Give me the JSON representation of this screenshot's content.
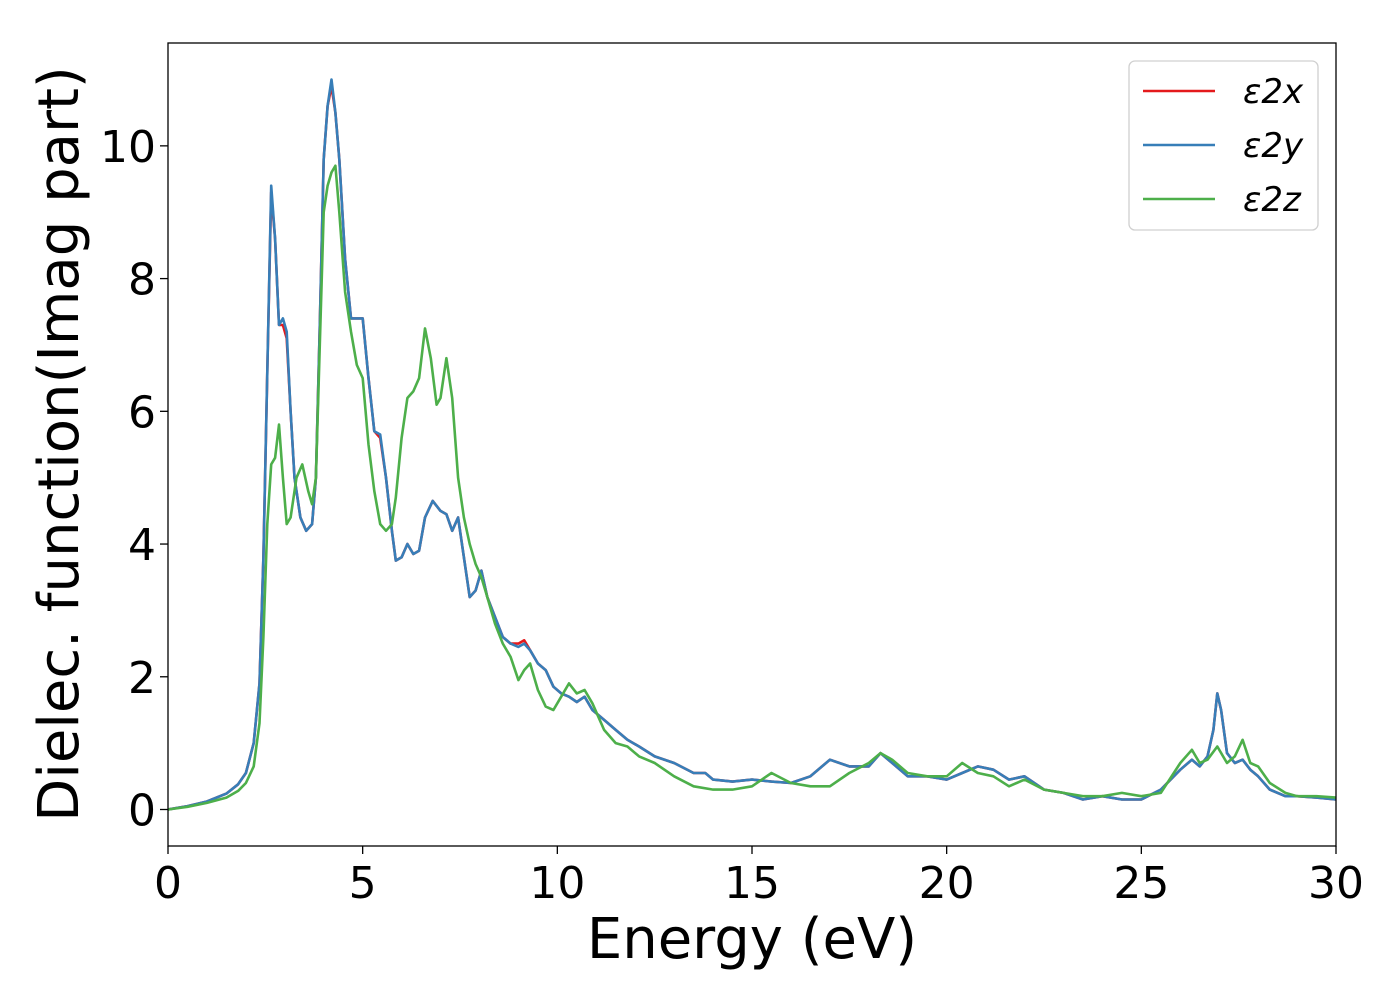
{
  "chart_data": {
    "type": "line",
    "xlabel": "Energy (eV)",
    "ylabel": "Dielec. function(Imag part)",
    "xlim": [
      0,
      30
    ],
    "ylim": [
      -0.55,
      11.55
    ],
    "xticks": [
      0,
      5,
      10,
      15,
      20,
      25,
      30
    ],
    "yticks": [
      0,
      2,
      4,
      6,
      8,
      10
    ],
    "grid": false,
    "legend_position": "top-right",
    "series": [
      {
        "name": "ε2x",
        "color": "#e41a1c",
        "x": [
          0,
          0.5,
          1.0,
          1.5,
          1.8,
          2.0,
          2.2,
          2.35,
          2.45,
          2.55,
          2.65,
          2.75,
          2.85,
          2.95,
          3.05,
          3.15,
          3.25,
          3.4,
          3.55,
          3.7,
          3.8,
          3.9,
          4.0,
          4.1,
          4.2,
          4.3,
          4.4,
          4.55,
          4.7,
          4.85,
          5.0,
          5.15,
          5.3,
          5.45,
          5.6,
          5.75,
          5.85,
          6.0,
          6.15,
          6.3,
          6.45,
          6.6,
          6.8,
          7.0,
          7.15,
          7.3,
          7.45,
          7.6,
          7.75,
          7.9,
          8.05,
          8.2,
          8.4,
          8.6,
          8.8,
          9.0,
          9.15,
          9.3,
          9.5,
          9.7,
          9.9,
          10.1,
          10.3,
          10.5,
          10.7,
          10.9,
          11.2,
          11.5,
          11.8,
          12.1,
          12.5,
          13.0,
          13.5,
          13.8,
          14.0,
          14.5,
          15.0,
          15.5,
          16.0,
          16.5,
          17.0,
          17.5,
          18.0,
          18.3,
          18.6,
          19.0,
          19.5,
          20.0,
          20.4,
          20.8,
          21.2,
          21.6,
          22.0,
          22.5,
          23.0,
          23.5,
          24.0,
          24.5,
          25.0,
          25.5,
          26.0,
          26.3,
          26.5,
          26.7,
          26.85,
          26.95,
          27.05,
          27.2,
          27.4,
          27.6,
          27.8,
          28.0,
          28.3,
          28.7,
          29.0,
          29.5,
          30.0
        ],
        "y": [
          0.0,
          0.05,
          0.12,
          0.24,
          0.38,
          0.55,
          1.0,
          1.9,
          3.8,
          6.6,
          9.3,
          8.6,
          7.3,
          7.3,
          7.1,
          6.0,
          5.0,
          4.4,
          4.2,
          4.3,
          5.0,
          7.3,
          9.8,
          10.6,
          10.9,
          10.5,
          9.8,
          8.3,
          7.4,
          7.4,
          7.4,
          6.5,
          5.7,
          5.6,
          5.0,
          4.2,
          3.75,
          3.8,
          4.0,
          3.85,
          3.9,
          4.4,
          4.65,
          4.5,
          4.45,
          4.2,
          4.4,
          3.8,
          3.2,
          3.3,
          3.6,
          3.2,
          2.9,
          2.6,
          2.5,
          2.5,
          2.55,
          2.4,
          2.2,
          2.1,
          1.85,
          1.75,
          1.7,
          1.62,
          1.7,
          1.5,
          1.35,
          1.2,
          1.05,
          0.95,
          0.8,
          0.7,
          0.55,
          0.55,
          0.45,
          0.42,
          0.45,
          0.42,
          0.4,
          0.5,
          0.75,
          0.65,
          0.65,
          0.85,
          0.7,
          0.5,
          0.5,
          0.45,
          0.55,
          0.65,
          0.6,
          0.45,
          0.5,
          0.3,
          0.25,
          0.15,
          0.2,
          0.15,
          0.15,
          0.3,
          0.6,
          0.75,
          0.65,
          0.8,
          1.2,
          1.75,
          1.5,
          0.85,
          0.7,
          0.75,
          0.6,
          0.5,
          0.3,
          0.2,
          0.2,
          0.18,
          0.15
        ]
      },
      {
        "name": "ε2y",
        "color": "#377eb8",
        "x": [
          0,
          0.5,
          1.0,
          1.5,
          1.8,
          2.0,
          2.2,
          2.35,
          2.45,
          2.55,
          2.65,
          2.75,
          2.85,
          2.95,
          3.05,
          3.15,
          3.25,
          3.4,
          3.55,
          3.7,
          3.8,
          3.9,
          4.0,
          4.1,
          4.2,
          4.3,
          4.4,
          4.55,
          4.7,
          4.85,
          5.0,
          5.15,
          5.3,
          5.45,
          5.6,
          5.75,
          5.85,
          6.0,
          6.15,
          6.3,
          6.45,
          6.6,
          6.8,
          7.0,
          7.15,
          7.3,
          7.45,
          7.6,
          7.75,
          7.9,
          8.05,
          8.2,
          8.4,
          8.6,
          8.8,
          9.0,
          9.15,
          9.3,
          9.5,
          9.7,
          9.9,
          10.1,
          10.3,
          10.5,
          10.7,
          10.9,
          11.2,
          11.5,
          11.8,
          12.1,
          12.5,
          13.0,
          13.5,
          13.8,
          14.0,
          14.5,
          15.0,
          15.5,
          16.0,
          16.5,
          17.0,
          17.5,
          18.0,
          18.3,
          18.6,
          19.0,
          19.5,
          20.0,
          20.4,
          20.8,
          21.2,
          21.6,
          22.0,
          22.5,
          23.0,
          23.5,
          24.0,
          24.5,
          25.0,
          25.5,
          26.0,
          26.3,
          26.5,
          26.7,
          26.85,
          26.95,
          27.05,
          27.2,
          27.4,
          27.6,
          27.8,
          28.0,
          28.3,
          28.7,
          29.0,
          29.5,
          30.0
        ],
        "y": [
          0.0,
          0.05,
          0.12,
          0.24,
          0.38,
          0.55,
          1.0,
          1.9,
          3.8,
          6.6,
          9.4,
          8.6,
          7.3,
          7.4,
          7.2,
          6.0,
          5.0,
          4.4,
          4.2,
          4.3,
          5.0,
          7.3,
          9.8,
          10.6,
          11.0,
          10.5,
          9.8,
          8.3,
          7.4,
          7.4,
          7.4,
          6.5,
          5.7,
          5.65,
          5.0,
          4.2,
          3.75,
          3.8,
          4.0,
          3.85,
          3.9,
          4.4,
          4.65,
          4.5,
          4.45,
          4.2,
          4.4,
          3.8,
          3.2,
          3.3,
          3.6,
          3.2,
          2.9,
          2.6,
          2.5,
          2.45,
          2.5,
          2.4,
          2.2,
          2.1,
          1.85,
          1.75,
          1.7,
          1.62,
          1.7,
          1.5,
          1.35,
          1.2,
          1.05,
          0.95,
          0.8,
          0.7,
          0.55,
          0.55,
          0.45,
          0.42,
          0.45,
          0.42,
          0.4,
          0.5,
          0.75,
          0.65,
          0.65,
          0.85,
          0.7,
          0.5,
          0.5,
          0.45,
          0.55,
          0.65,
          0.6,
          0.45,
          0.5,
          0.3,
          0.25,
          0.15,
          0.2,
          0.15,
          0.15,
          0.3,
          0.6,
          0.75,
          0.65,
          0.8,
          1.2,
          1.75,
          1.5,
          0.85,
          0.7,
          0.75,
          0.6,
          0.5,
          0.3,
          0.2,
          0.2,
          0.18,
          0.15
        ]
      },
      {
        "name": "ε2z",
        "color": "#4daf4a",
        "x": [
          0,
          0.5,
          1.0,
          1.5,
          1.8,
          2.0,
          2.2,
          2.35,
          2.45,
          2.55,
          2.65,
          2.75,
          2.85,
          2.95,
          3.05,
          3.15,
          3.3,
          3.45,
          3.6,
          3.7,
          3.8,
          3.9,
          4.0,
          4.1,
          4.2,
          4.3,
          4.4,
          4.55,
          4.7,
          4.85,
          5.0,
          5.15,
          5.3,
          5.45,
          5.6,
          5.75,
          5.85,
          6.0,
          6.15,
          6.3,
          6.45,
          6.6,
          6.75,
          6.9,
          7.0,
          7.15,
          7.3,
          7.45,
          7.6,
          7.75,
          7.9,
          8.05,
          8.2,
          8.4,
          8.6,
          8.8,
          9.0,
          9.15,
          9.3,
          9.5,
          9.7,
          9.9,
          10.1,
          10.3,
          10.5,
          10.7,
          10.9,
          11.2,
          11.5,
          11.8,
          12.1,
          12.5,
          13.0,
          13.5,
          14.0,
          14.5,
          15.0,
          15.5,
          16.0,
          16.5,
          17.0,
          17.5,
          18.0,
          18.3,
          18.6,
          19.0,
          19.5,
          20.0,
          20.4,
          20.8,
          21.2,
          21.6,
          22.0,
          22.5,
          23.0,
          23.5,
          24.0,
          24.5,
          25.0,
          25.5,
          26.0,
          26.3,
          26.5,
          26.7,
          26.95,
          27.2,
          27.4,
          27.6,
          27.8,
          28.0,
          28.3,
          28.7,
          29.0,
          29.5,
          30.0
        ],
        "y": [
          0.0,
          0.04,
          0.1,
          0.18,
          0.28,
          0.4,
          0.65,
          1.3,
          2.6,
          4.3,
          5.2,
          5.3,
          5.8,
          5.0,
          4.3,
          4.4,
          5.0,
          5.2,
          4.8,
          4.6,
          5.0,
          7.0,
          9.0,
          9.4,
          9.6,
          9.7,
          9.0,
          7.8,
          7.2,
          6.7,
          6.5,
          5.5,
          4.8,
          4.3,
          4.2,
          4.3,
          4.7,
          5.6,
          6.2,
          6.3,
          6.5,
          7.25,
          6.8,
          6.1,
          6.2,
          6.8,
          6.2,
          5.0,
          4.4,
          4.0,
          3.7,
          3.5,
          3.2,
          2.8,
          2.5,
          2.3,
          1.95,
          2.1,
          2.2,
          1.8,
          1.55,
          1.5,
          1.7,
          1.9,
          1.75,
          1.8,
          1.6,
          1.2,
          1.0,
          0.95,
          0.8,
          0.7,
          0.5,
          0.35,
          0.3,
          0.3,
          0.35,
          0.55,
          0.4,
          0.35,
          0.35,
          0.55,
          0.7,
          0.85,
          0.75,
          0.55,
          0.5,
          0.5,
          0.7,
          0.55,
          0.5,
          0.35,
          0.45,
          0.3,
          0.25,
          0.2,
          0.2,
          0.25,
          0.2,
          0.25,
          0.7,
          0.9,
          0.7,
          0.75,
          0.95,
          0.7,
          0.8,
          1.05,
          0.7,
          0.65,
          0.4,
          0.25,
          0.2,
          0.2,
          0.18
        ]
      }
    ]
  }
}
